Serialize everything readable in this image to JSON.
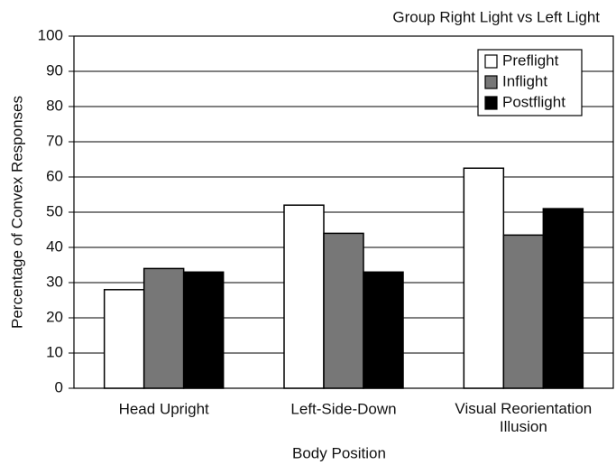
{
  "chart_data": {
    "type": "bar",
    "title": "Group Right Light vs Left Light",
    "xlabel": "Body Position",
    "ylabel": "Percentage of Convex Responses",
    "categories": [
      "Head Upright",
      "Left-Side-Down",
      "Visual Reorientation Illusion"
    ],
    "series": [
      {
        "name": "Preflight",
        "color": "#ffffff",
        "values": [
          28,
          52,
          62.5
        ]
      },
      {
        "name": "Inflight",
        "color": "#777777",
        "values": [
          34,
          44,
          43.5
        ]
      },
      {
        "name": "Postflight",
        "color": "#000000",
        "values": [
          33,
          33,
          51
        ]
      }
    ],
    "ylim": [
      0,
      100
    ],
    "yticks": [
      0,
      10,
      20,
      30,
      40,
      50,
      60,
      70,
      80,
      90,
      100
    ],
    "grid": true,
    "legend": "upper right"
  }
}
